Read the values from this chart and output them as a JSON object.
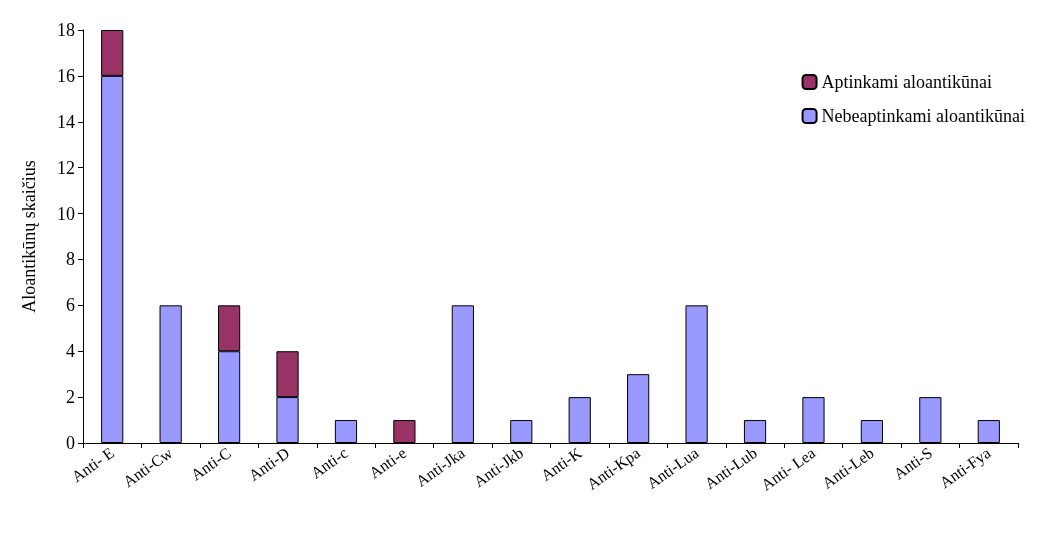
{
  "chart_data": {
    "type": "bar",
    "stacked": true,
    "ylabel": "Aloantikūnų skaičius",
    "categories": [
      "Anti- E",
      "Anti-Cw",
      "Anti-C",
      "Anti-D",
      "Anti-c",
      "Anti-e",
      "Anti-Jka",
      "Anti-Jkb",
      "Anti-K",
      "Anti-Kpa",
      "Anti-Lua",
      "Anti-Lub",
      "Anti- Lea",
      "Anti-Leb",
      "Anti-S",
      "Anti-Fya"
    ],
    "series": [
      {
        "name": "Nebeaptinkami aloantikūnai",
        "color": "#9999ff",
        "values": [
          16,
          6,
          4,
          2,
          1,
          0,
          6,
          1,
          2,
          3,
          6,
          1,
          2,
          1,
          2,
          1
        ]
      },
      {
        "name": "Aptinkami aloantikūnai",
        "color": "#993366",
        "values": [
          2,
          0,
          2,
          2,
          0,
          1,
          0,
          0,
          0,
          0,
          0,
          0,
          0,
          0,
          0,
          0
        ]
      }
    ],
    "ylim": [
      0,
      18
    ],
    "yticks": [
      0,
      2,
      4,
      6,
      8,
      10,
      12,
      14,
      16,
      18
    ],
    "grid": false,
    "legend": "top right"
  }
}
